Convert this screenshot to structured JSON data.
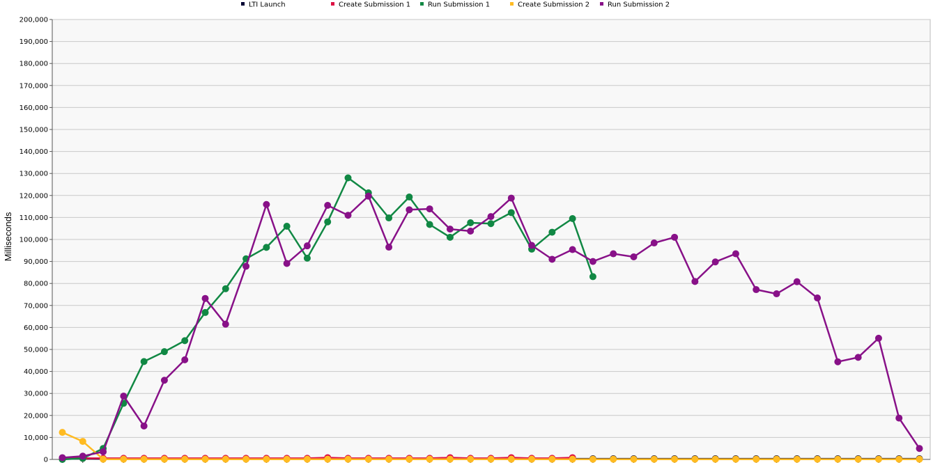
{
  "chart_data": {
    "type": "line",
    "title": "",
    "xlabel": "",
    "ylabel": "Milliseconds",
    "ylim": [
      0,
      200000
    ],
    "y_ticks": [
      0,
      10000,
      20000,
      30000,
      40000,
      50000,
      60000,
      70000,
      80000,
      90000,
      100000,
      110000,
      120000,
      130000,
      140000,
      150000,
      160000,
      170000,
      180000,
      190000,
      200000
    ],
    "y_tick_labels": [
      "0",
      "10,000",
      "20,000",
      "30,000",
      "40,000",
      "50,000",
      "60,000",
      "70,000",
      "80,000",
      "90,000",
      "100,000",
      "110,000",
      "120,000",
      "130,000",
      "140,000",
      "150,000",
      "160,000",
      "170,000",
      "180,000",
      "190,000",
      "200,000"
    ],
    "x_count": 43,
    "grid": true,
    "legend_position": "top",
    "series": [
      {
        "name": "LTI Launch",
        "color": "#000033",
        "values": [
          500,
          500,
          300,
          300,
          300,
          300,
          300,
          300,
          300,
          300,
          300,
          300,
          300,
          300,
          300,
          300,
          300,
          300,
          300,
          300,
          300,
          300,
          300,
          300,
          300,
          300,
          300,
          300,
          300,
          300,
          300,
          300,
          300,
          300,
          300,
          300,
          300,
          300,
          300,
          300,
          300,
          300,
          300
        ]
      },
      {
        "name": "Create Submission 1",
        "color": "#dd1144",
        "values": [
          500,
          500,
          500,
          500,
          500,
          500,
          500,
          500,
          500,
          500,
          500,
          500,
          500,
          800,
          500,
          500,
          500,
          500,
          500,
          800,
          500,
          500,
          800,
          500,
          500,
          800
        ]
      },
      {
        "name": "Run Submission 1",
        "color": "#118844",
        "values": [
          0,
          500,
          5000,
          25500,
          44500,
          49000,
          54000,
          66800,
          77600,
          91200,
          96400,
          106000,
          91500,
          108000,
          128000,
          121200,
          109800,
          119300,
          106800,
          101000,
          107600,
          107200,
          112200,
          95600,
          103300,
          109500,
          83100
        ]
      },
      {
        "name": "Create Submission 2",
        "color": "#ffbb22",
        "values": [
          12300,
          8200,
          100,
          100,
          100,
          100,
          100,
          100,
          100,
          100,
          100,
          100,
          100,
          100,
          100,
          100,
          100,
          100,
          100,
          100,
          100,
          100,
          100,
          100,
          100,
          100,
          100,
          100,
          100,
          100,
          100,
          100,
          100,
          100,
          100,
          100,
          100,
          100,
          100,
          100,
          100,
          100,
          100
        ]
      },
      {
        "name": "Run Submission 2",
        "color": "#881188",
        "values": [
          800,
          1500,
          3500,
          28800,
          15200,
          36000,
          45300,
          73200,
          61500,
          87800,
          115900,
          89100,
          97100,
          115500,
          111000,
          119700,
          96500,
          113500,
          113900,
          104700,
          103800,
          110400,
          118800,
          97300,
          91000,
          95400,
          90000,
          93500,
          92100,
          98400,
          101000,
          80900,
          89800,
          93500,
          77200,
          75300,
          80800,
          73400,
          44400,
          46400,
          55100,
          18800,
          5000
        ]
      }
    ]
  }
}
